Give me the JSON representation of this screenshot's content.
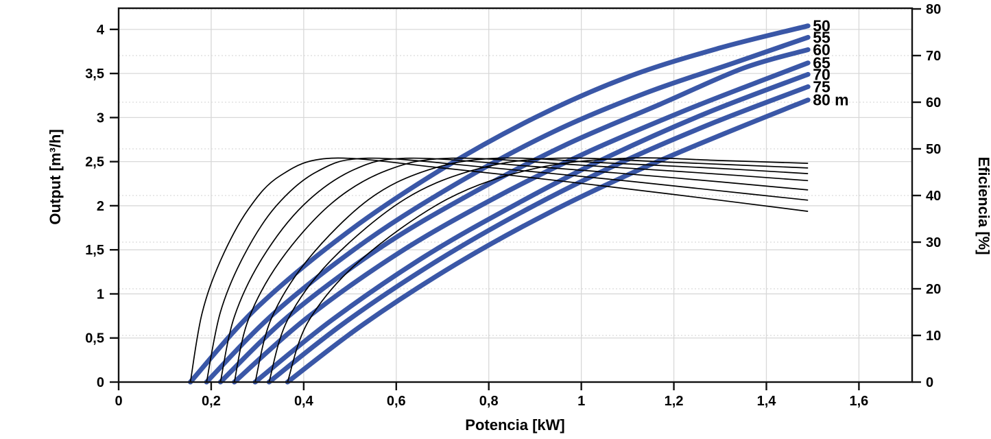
{
  "chart_data": {
    "type": "line",
    "title": "",
    "xlabel": "Potencia [kW]",
    "ylabel_left": "Output [m³/h]",
    "ylabel_right": "Eficiencia [%]",
    "xlim": [
      0,
      1.715
    ],
    "ylim_left": [
      0,
      4.24
    ],
    "ylim_right": [
      0,
      80.15
    ],
    "x_ticks": {
      "values": [
        0,
        0.2,
        0.4,
        0.6,
        0.8,
        1,
        1.2,
        1.4,
        1.6
      ],
      "labels": [
        "0",
        "0,2",
        "0,4",
        "0,6",
        "0,8",
        "1",
        "1,2",
        "1,4",
        "1,6"
      ]
    },
    "y_left_ticks": {
      "values": [
        0,
        0.5,
        1,
        1.5,
        2,
        2.5,
        3,
        3.5,
        4
      ],
      "labels": [
        "0",
        "0,5",
        "1",
        "1,5",
        "2",
        "2,5",
        "3",
        "3,5",
        "4"
      ]
    },
    "y_right_ticks": {
      "values": [
        0,
        10,
        20,
        30,
        40,
        50,
        60,
        70,
        80
      ],
      "labels": [
        "0",
        "10",
        "20",
        "30",
        "40",
        "50",
        "60",
        "70",
        "80"
      ]
    },
    "grid": {
      "vertical_solid_step_kw": 0.2,
      "horizontal_solid_step_left_axis": 0.5,
      "horizontal_dotted_step_right_axis": 10
    },
    "legend_position": "labels-at-curve-ends",
    "colors": {
      "flow_curve": "#3a57a7",
      "efficiency_curve": "#000000",
      "grid_solid": "#d8d8d8",
      "grid_dotted": "#d9d9d9",
      "axis": "#111111"
    },
    "flow_series": [
      {
        "head_m": 50,
        "label": "50",
        "points": [
          [
            0.155,
            0
          ],
          [
            0.3,
            0.85
          ],
          [
            0.5,
            1.72
          ],
          [
            0.7,
            2.42
          ],
          [
            0.9,
            3.0
          ],
          [
            1.1,
            3.46
          ],
          [
            1.3,
            3.79
          ],
          [
            1.49,
            4.04
          ]
        ]
      },
      {
        "head_m": 55,
        "label": "55",
        "points": [
          [
            0.19,
            0
          ],
          [
            0.34,
            0.8
          ],
          [
            0.54,
            1.62
          ],
          [
            0.74,
            2.28
          ],
          [
            0.94,
            2.84
          ],
          [
            1.14,
            3.28
          ],
          [
            1.33,
            3.62
          ],
          [
            1.49,
            3.91
          ]
        ]
      },
      {
        "head_m": 60,
        "label": "60",
        "points": [
          [
            0.22,
            0
          ],
          [
            0.37,
            0.76
          ],
          [
            0.57,
            1.54
          ],
          [
            0.77,
            2.16
          ],
          [
            0.97,
            2.7
          ],
          [
            1.17,
            3.15
          ],
          [
            1.35,
            3.56
          ],
          [
            1.49,
            3.77
          ]
        ]
      },
      {
        "head_m": 65,
        "label": "65",
        "points": [
          [
            0.25,
            0
          ],
          [
            0.41,
            0.74
          ],
          [
            0.61,
            1.48
          ],
          [
            0.81,
            2.08
          ],
          [
            1.01,
            2.6
          ],
          [
            1.21,
            3.05
          ],
          [
            1.38,
            3.4
          ],
          [
            1.49,
            3.62
          ]
        ]
      },
      {
        "head_m": 70,
        "label": "70",
        "points": [
          [
            0.295,
            0
          ],
          [
            0.46,
            0.7
          ],
          [
            0.66,
            1.42
          ],
          [
            0.86,
            2.02
          ],
          [
            1.06,
            2.56
          ],
          [
            1.27,
            3.05
          ],
          [
            1.49,
            3.49
          ]
        ]
      },
      {
        "head_m": 75,
        "label": "75",
        "points": [
          [
            0.325,
            0
          ],
          [
            0.49,
            0.68
          ],
          [
            0.69,
            1.38
          ],
          [
            0.89,
            1.98
          ],
          [
            1.09,
            2.5
          ],
          [
            1.29,
            2.95
          ],
          [
            1.49,
            3.35
          ]
        ]
      },
      {
        "head_m": 80,
        "label": "80 m",
        "points": [
          [
            0.365,
            0
          ],
          [
            0.53,
            0.66
          ],
          [
            0.73,
            1.34
          ],
          [
            0.93,
            1.92
          ],
          [
            1.13,
            2.42
          ],
          [
            1.31,
            2.82
          ],
          [
            1.49,
            3.2
          ]
        ]
      }
    ],
    "efficiency_series": [
      {
        "head_m": 50,
        "points": [
          [
            0.155,
            0
          ],
          [
            0.18,
            14.6
          ],
          [
            0.22,
            26.0
          ],
          [
            0.28,
            37.0
          ],
          [
            0.35,
            44.3
          ],
          [
            0.46,
            48
          ],
          [
            0.7,
            45.9
          ],
          [
            1.0,
            42.6
          ],
          [
            1.25,
            39.6
          ],
          [
            1.49,
            36.6
          ]
        ]
      },
      {
        "head_m": 55,
        "points": [
          [
            0.19,
            0
          ],
          [
            0.22,
            15.0
          ],
          [
            0.27,
            27.0
          ],
          [
            0.34,
            37.7
          ],
          [
            0.43,
            45.2
          ],
          [
            0.54,
            48
          ],
          [
            0.8,
            46.0
          ],
          [
            1.1,
            43.1
          ],
          [
            1.3,
            41.0
          ],
          [
            1.49,
            39.0
          ]
        ]
      },
      {
        "head_m": 60,
        "points": [
          [
            0.22,
            0
          ],
          [
            0.25,
            14.0
          ],
          [
            0.31,
            26.5
          ],
          [
            0.4,
            38.0
          ],
          [
            0.51,
            45.6
          ],
          [
            0.63,
            48
          ],
          [
            0.9,
            46.2
          ],
          [
            1.2,
            43.8
          ],
          [
            1.49,
            41.2
          ]
        ]
      },
      {
        "head_m": 65,
        "points": [
          [
            0.25,
            0
          ],
          [
            0.28,
            13.3
          ],
          [
            0.35,
            26.1
          ],
          [
            0.46,
            38.3
          ],
          [
            0.58,
            45.4
          ],
          [
            0.72,
            48
          ],
          [
            1.0,
            46.5
          ],
          [
            1.25,
            44.9
          ],
          [
            1.49,
            43.2
          ]
        ]
      },
      {
        "head_m": 70,
        "points": [
          [
            0.295,
            0
          ],
          [
            0.33,
            13.6
          ],
          [
            0.41,
            26.4
          ],
          [
            0.54,
            39.1
          ],
          [
            0.67,
            45.5
          ],
          [
            0.82,
            48
          ],
          [
            1.05,
            47.0
          ],
          [
            1.3,
            45.8
          ],
          [
            1.49,
            44.7
          ]
        ]
      },
      {
        "head_m": 75,
        "points": [
          [
            0.325,
            0
          ],
          [
            0.365,
            13.3
          ],
          [
            0.46,
            26.2
          ],
          [
            0.62,
            39.3
          ],
          [
            0.78,
            45.8
          ],
          [
            0.95,
            48
          ],
          [
            1.2,
            47.1
          ],
          [
            1.49,
            45.9
          ]
        ]
      },
      {
        "head_m": 80,
        "points": [
          [
            0.365,
            0
          ],
          [
            0.41,
            13.0
          ],
          [
            0.52,
            25.9
          ],
          [
            0.71,
            39.2
          ],
          [
            0.9,
            45.8
          ],
          [
            1.1,
            48
          ],
          [
            1.3,
            47.5
          ],
          [
            1.49,
            46.9
          ]
        ]
      }
    ]
  }
}
